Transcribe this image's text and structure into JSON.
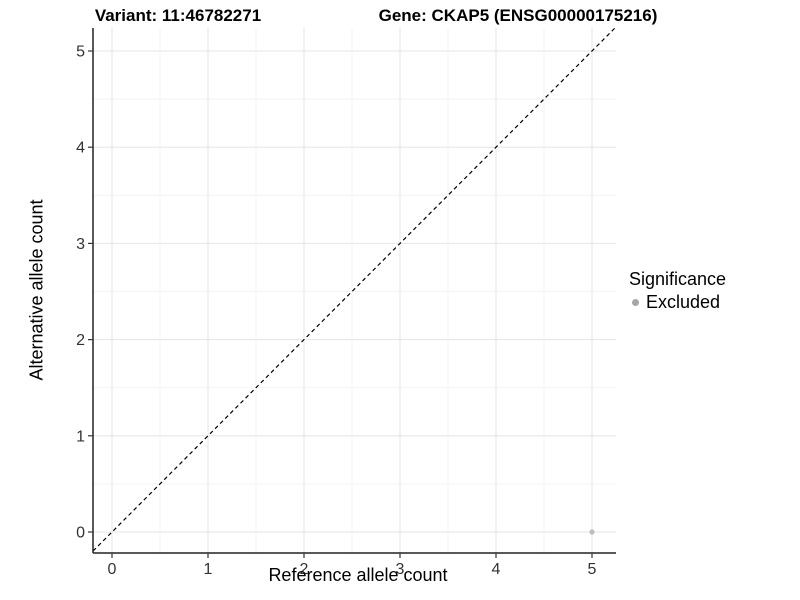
{
  "titles": {
    "variant": "Variant: 11:46782271",
    "gene": "Gene: CKAP5 (ENSG00000175216)"
  },
  "chart_data": {
    "type": "scatter",
    "xlabel": "Reference allele count",
    "ylabel": "Alternative allele count",
    "xlim": [
      -0.25,
      5.25
    ],
    "ylim": [
      -0.25,
      5.25
    ],
    "xticks": [
      0,
      1,
      2,
      3,
      4,
      5
    ],
    "yticks": [
      0,
      1,
      2,
      3,
      4,
      5
    ],
    "minor_xticks": [
      0.5,
      1.5,
      2.5,
      3.5,
      4.5
    ],
    "minor_yticks": [
      0.5,
      1.5,
      2.5,
      3.5,
      4.5
    ],
    "grid": "major+minor",
    "reference_line": {
      "slope": 1,
      "intercept": 0,
      "style": "dashed",
      "color": "#000000"
    },
    "series": [
      {
        "name": "Excluded",
        "color": "#bdbdbd",
        "points": [
          {
            "x": 5,
            "y": 0
          }
        ]
      }
    ],
    "legend": {
      "title": "Significance",
      "position": "right",
      "entries": [
        {
          "label": "Excluded",
          "color": "#a6a6a6"
        }
      ]
    },
    "colors": {
      "grid_major": "#e6e6e6",
      "grid_minor": "#f3f3f3",
      "axis_line": "#222222",
      "tick_mark": "#333333",
      "tick_label": "#333333"
    }
  }
}
